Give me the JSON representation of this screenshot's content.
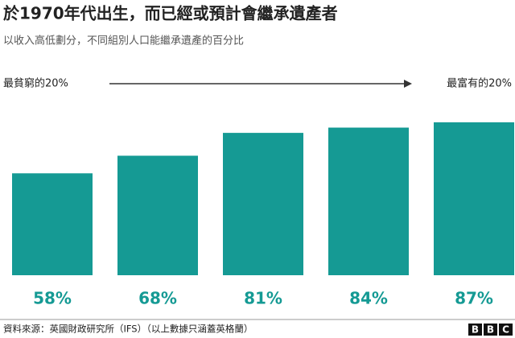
{
  "chart_data": {
    "type": "bar",
    "title": "於1970年代出生，而已經或預計會繼承遺產者",
    "subtitle": "以收入高低劃分，不同組別人口能繼承遺產的百分比",
    "left_label": "最貧窮的20%",
    "right_label": "最富有的20%",
    "values": [
      58,
      68,
      81,
      84,
      87
    ],
    "value_labels": [
      "58%",
      "68%",
      "81%",
      "84%",
      "87%"
    ],
    "color": "#159a94",
    "source": "資料來源：英國財政研究所（IFS）（以上數據只涵蓋英格蘭）",
    "logo": [
      "B",
      "B",
      "C"
    ]
  }
}
